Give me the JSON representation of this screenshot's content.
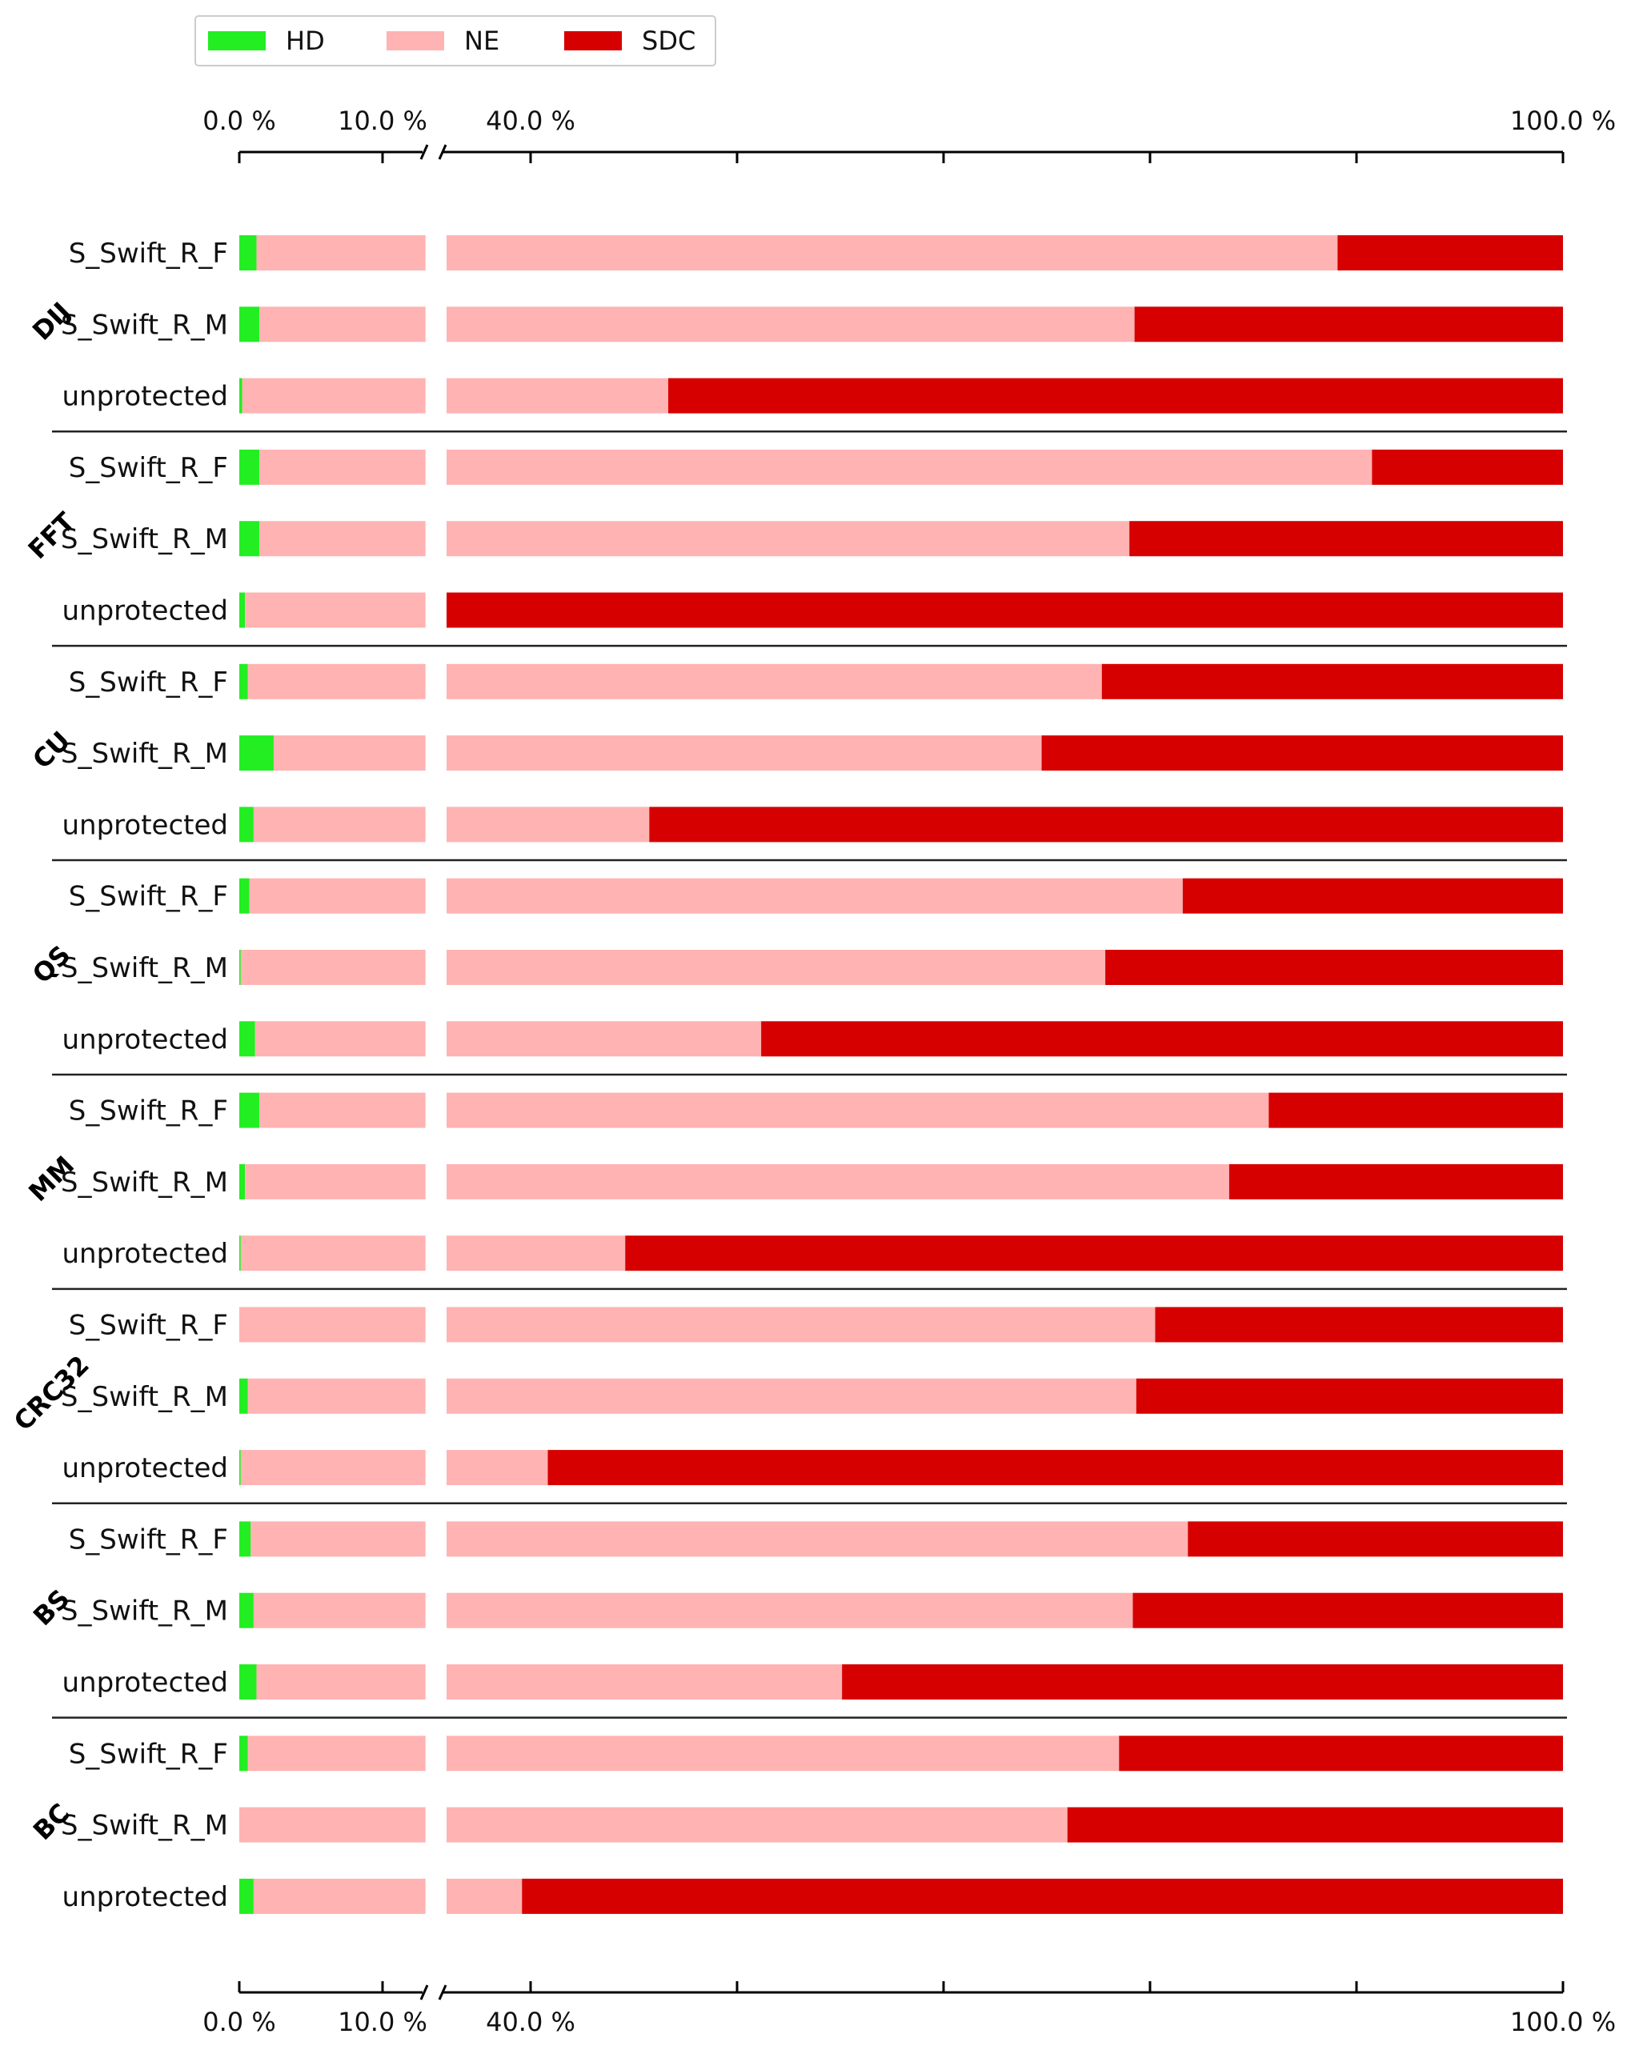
{
  "chart_data": {
    "type": "bar",
    "orientation": "horizontal",
    "stacked": true,
    "legend": {
      "placement": "top-left",
      "entries": [
        {
          "name": "HD",
          "color": "#22ee22"
        },
        {
          "name": "NE",
          "color": "#ffb3b3"
        },
        {
          "name": "SDC",
          "color": "#d60000"
        }
      ]
    },
    "x_axis": {
      "broken": true,
      "segments": [
        [
          0,
          13
        ],
        [
          37,
          100
        ]
      ],
      "tick_labels_top": [
        "0.0 %",
        "10.0 %",
        "40.0 %",
        "100.0 %"
      ],
      "tick_labels_bottom": [
        "0.0 %",
        "10.0 %",
        "40.0 %",
        "100.0 %"
      ],
      "major_ticks": [
        0,
        10,
        40,
        100
      ],
      "minor_ticks": [
        52,
        64,
        76,
        88
      ]
    },
    "groups": [
      {
        "name": "DIJ",
        "rows": [
          {
            "label": "S_Swift_R_F",
            "HD": 1.2,
            "NE": 85.7,
            "SDC": 13.1
          },
          {
            "label": "S_Swift_R_M",
            "HD": 1.4,
            "NE": 73.7,
            "SDC": 24.9
          },
          {
            "label": "unprotected",
            "HD": 0.2,
            "NE": 47.8,
            "SDC": 52.0
          }
        ]
      },
      {
        "name": "FFT",
        "rows": [
          {
            "label": "S_Swift_R_F",
            "HD": 1.4,
            "NE": 87.5,
            "SDC": 11.1
          },
          {
            "label": "S_Swift_R_M",
            "HD": 1.4,
            "NE": 73.4,
            "SDC": 25.2
          },
          {
            "label": "unprotected",
            "HD": 0.4,
            "NE": 35.6,
            "SDC": 64.0
          }
        ]
      },
      {
        "name": "CU",
        "rows": [
          {
            "label": "S_Swift_R_F",
            "HD": 0.6,
            "NE": 72.6,
            "SDC": 26.8
          },
          {
            "label": "S_Swift_R_M",
            "HD": 2.4,
            "NE": 67.3,
            "SDC": 30.3
          },
          {
            "label": "unprotected",
            "HD": 1.0,
            "NE": 45.9,
            "SDC": 53.1
          }
        ]
      },
      {
        "name": "QS",
        "rows": [
          {
            "label": "S_Swift_R_F",
            "HD": 0.7,
            "NE": 77.2,
            "SDC": 22.1
          },
          {
            "label": "S_Swift_R_M",
            "HD": 0.1,
            "NE": 73.3,
            "SDC": 26.6
          },
          {
            "label": "unprotected",
            "HD": 1.1,
            "NE": 52.3,
            "SDC": 46.6
          }
        ]
      },
      {
        "name": "MM",
        "rows": [
          {
            "label": "S_Swift_R_F",
            "HD": 1.4,
            "NE": 81.5,
            "SDC": 17.1
          },
          {
            "label": "S_Swift_R_M",
            "HD": 0.4,
            "NE": 80.2,
            "SDC": 19.4
          },
          {
            "label": "unprotected",
            "HD": 0.1,
            "NE": 45.4,
            "SDC": 54.5
          }
        ]
      },
      {
        "name": "CRC32",
        "rows": [
          {
            "label": "S_Swift_R_F",
            "HD": 0.0,
            "NE": 76.3,
            "SDC": 23.7
          },
          {
            "label": "S_Swift_R_M",
            "HD": 0.6,
            "NE": 74.6,
            "SDC": 24.8
          },
          {
            "label": "unprotected",
            "HD": 0.1,
            "NE": 40.9,
            "SDC": 59.0
          }
        ]
      },
      {
        "name": "BS",
        "rows": [
          {
            "label": "S_Swift_R_F",
            "HD": 0.8,
            "NE": 77.4,
            "SDC": 21.8
          },
          {
            "label": "S_Swift_R_M",
            "HD": 1.0,
            "NE": 74.0,
            "SDC": 25.0
          },
          {
            "label": "unprotected",
            "HD": 1.2,
            "NE": 56.9,
            "SDC": 41.9
          }
        ]
      },
      {
        "name": "BC",
        "rows": [
          {
            "label": "S_Swift_R_F",
            "HD": 0.6,
            "NE": 73.6,
            "SDC": 25.8
          },
          {
            "label": "S_Swift_R_M",
            "HD": 0.0,
            "NE": 71.2,
            "SDC": 28.8
          },
          {
            "label": "unprotected",
            "HD": 1.0,
            "NE": 38.5,
            "SDC": 60.5
          }
        ]
      }
    ]
  }
}
